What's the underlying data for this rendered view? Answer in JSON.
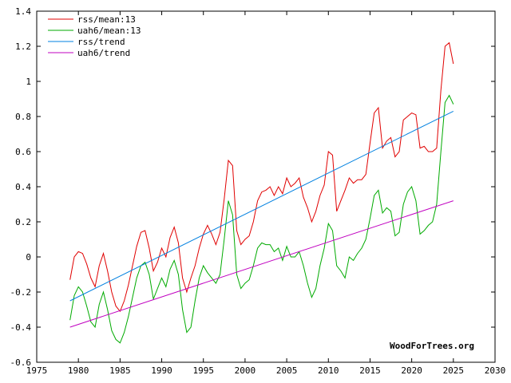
{
  "chart_data": {
    "type": "line",
    "xlim": [
      1975,
      2030
    ],
    "ylim": [
      -0.6,
      1.4
    ],
    "x_ticks": [
      "1975",
      "1980",
      "1985",
      "1990",
      "1995",
      "2000",
      "2005",
      "2010",
      "2015",
      "2020",
      "2025",
      "2030"
    ],
    "y_ticks": [
      "-0.6",
      "-0.4",
      "-0.2",
      "0",
      "0.2",
      "0.4",
      "0.6",
      "0.8",
      "1",
      "1.2",
      "1.4"
    ],
    "grid": false,
    "legend_position": "top-left",
    "watermark": "WoodForTrees.org",
    "series": [
      {
        "name": "rss/mean:13",
        "color": "#e00000",
        "x": [
          1979.0,
          1979.5,
          1980.0,
          1980.5,
          1981.0,
          1981.5,
          1982.0,
          1982.5,
          1983.0,
          1983.5,
          1984.0,
          1984.5,
          1985.0,
          1985.5,
          1986.0,
          1986.5,
          1987.0,
          1987.5,
          1988.0,
          1988.5,
          1989.0,
          1989.5,
          1990.0,
          1990.5,
          1991.0,
          1991.5,
          1992.0,
          1992.5,
          1993.0,
          1993.5,
          1994.0,
          1994.5,
          1995.0,
          1995.5,
          1996.0,
          1996.5,
          1997.0,
          1997.5,
          1998.0,
          1998.5,
          1999.0,
          1999.5,
          2000.0,
          2000.5,
          2001.0,
          2001.5,
          2002.0,
          2002.5,
          2003.0,
          2003.5,
          2004.0,
          2004.5,
          2005.0,
          2005.5,
          2006.0,
          2006.5,
          2007.0,
          2007.5,
          2008.0,
          2008.5,
          2009.0,
          2009.5,
          2010.0,
          2010.5,
          2011.0,
          2011.5,
          2012.0,
          2012.5,
          2013.0,
          2013.5,
          2014.0,
          2014.5,
          2015.0,
          2015.5,
          2016.0,
          2016.5,
          2017.0,
          2017.5,
          2018.0,
          2018.5,
          2019.0,
          2019.5,
          2020.0,
          2020.5,
          2021.0,
          2021.5,
          2022.0,
          2022.5,
          2023.0,
          2023.5,
          2024.0,
          2024.5,
          2025.0
        ],
        "values": [
          -0.13,
          0.0,
          0.03,
          0.02,
          -0.04,
          -0.12,
          -0.17,
          -0.05,
          0.02,
          -0.08,
          -0.2,
          -0.28,
          -0.31,
          -0.25,
          -0.16,
          -0.05,
          0.06,
          0.14,
          0.15,
          0.05,
          -0.08,
          -0.03,
          0.05,
          0.0,
          0.11,
          0.17,
          0.08,
          -0.12,
          -0.2,
          -0.12,
          -0.05,
          0.05,
          0.13,
          0.18,
          0.13,
          0.07,
          0.14,
          0.33,
          0.55,
          0.52,
          0.15,
          0.07,
          0.1,
          0.12,
          0.2,
          0.32,
          0.37,
          0.38,
          0.4,
          0.35,
          0.4,
          0.36,
          0.45,
          0.4,
          0.42,
          0.45,
          0.34,
          0.28,
          0.2,
          0.26,
          0.35,
          0.41,
          0.6,
          0.58,
          0.26,
          0.32,
          0.38,
          0.45,
          0.42,
          0.44,
          0.44,
          0.47,
          0.65,
          0.82,
          0.85,
          0.62,
          0.66,
          0.68,
          0.57,
          0.6,
          0.78,
          0.8,
          0.82,
          0.81,
          0.62,
          0.63,
          0.6,
          0.6,
          0.62,
          0.95,
          1.2,
          1.22,
          1.1
        ]
      },
      {
        "name": "uah6/mean:13",
        "color": "#00aa00",
        "x": [
          1979.0,
          1979.5,
          1980.0,
          1980.5,
          1981.0,
          1981.5,
          1982.0,
          1982.5,
          1983.0,
          1983.5,
          1984.0,
          1984.5,
          1985.0,
          1985.5,
          1986.0,
          1986.5,
          1987.0,
          1987.5,
          1988.0,
          1988.5,
          1989.0,
          1989.5,
          1990.0,
          1990.5,
          1991.0,
          1991.5,
          1992.0,
          1992.5,
          1993.0,
          1993.5,
          1994.0,
          1994.5,
          1995.0,
          1995.5,
          1996.0,
          1996.5,
          1997.0,
          1997.5,
          1998.0,
          1998.5,
          1999.0,
          1999.5,
          2000.0,
          2000.5,
          2001.0,
          2001.5,
          2002.0,
          2002.5,
          2003.0,
          2003.5,
          2004.0,
          2004.5,
          2005.0,
          2005.5,
          2006.0,
          2006.5,
          2007.0,
          2007.5,
          2008.0,
          2008.5,
          2009.0,
          2009.5,
          2010.0,
          2010.5,
          2011.0,
          2011.5,
          2012.0,
          2012.5,
          2013.0,
          2013.5,
          2014.0,
          2014.5,
          2015.0,
          2015.5,
          2016.0,
          2016.5,
          2017.0,
          2017.5,
          2018.0,
          2018.5,
          2019.0,
          2019.5,
          2020.0,
          2020.5,
          2021.0,
          2021.5,
          2022.0,
          2022.5,
          2023.0,
          2023.5,
          2024.0,
          2024.5,
          2025.0
        ],
        "values": [
          -0.36,
          -0.22,
          -0.17,
          -0.2,
          -0.28,
          -0.37,
          -0.4,
          -0.27,
          -0.2,
          -0.3,
          -0.42,
          -0.47,
          -0.49,
          -0.43,
          -0.34,
          -0.23,
          -0.12,
          -0.05,
          -0.03,
          -0.1,
          -0.24,
          -0.18,
          -0.12,
          -0.17,
          -0.07,
          -0.02,
          -0.1,
          -0.3,
          -0.43,
          -0.4,
          -0.25,
          -0.12,
          -0.05,
          -0.09,
          -0.12,
          -0.15,
          -0.1,
          0.1,
          0.32,
          0.24,
          -0.1,
          -0.18,
          -0.15,
          -0.13,
          -0.05,
          0.05,
          0.08,
          0.07,
          0.07,
          0.03,
          0.05,
          -0.02,
          0.06,
          0.0,
          0.0,
          0.03,
          -0.05,
          -0.15,
          -0.23,
          -0.18,
          -0.05,
          0.05,
          0.19,
          0.15,
          -0.05,
          -0.08,
          -0.12,
          0.0,
          -0.02,
          0.02,
          0.05,
          0.1,
          0.22,
          0.35,
          0.38,
          0.25,
          0.28,
          0.26,
          0.12,
          0.14,
          0.3,
          0.37,
          0.4,
          0.32,
          0.13,
          0.15,
          0.18,
          0.2,
          0.3,
          0.6,
          0.88,
          0.92,
          0.87
        ]
      },
      {
        "name": "rss/trend",
        "color": "#0080e0",
        "x": [
          1979,
          2025
        ],
        "values": [
          -0.25,
          0.83
        ]
      },
      {
        "name": "uah6/trend",
        "color": "#c000c0",
        "x": [
          1979,
          2025
        ],
        "values": [
          -0.4,
          0.32
        ]
      }
    ]
  }
}
